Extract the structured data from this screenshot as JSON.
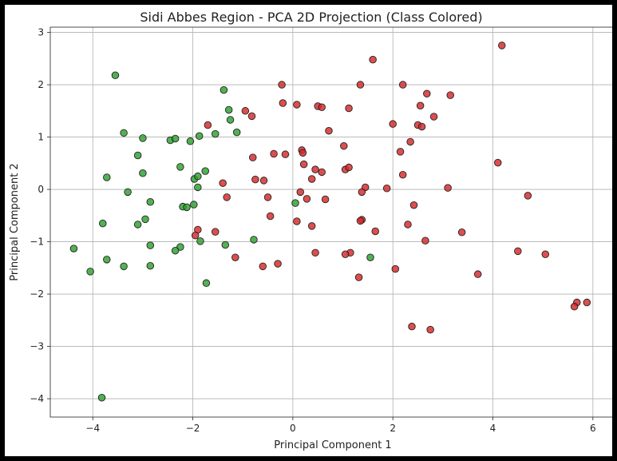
{
  "chart_data": {
    "type": "scatter",
    "title": "Sidi Abbes Region - PCA 2D Projection (Class Colored)",
    "xlabel": "Principal Component 1",
    "ylabel": "Principal Component 2",
    "xlim": [
      -4.85,
      6.45
    ],
    "ylim": [
      -4.35,
      3.1
    ],
    "xticks": [
      -4,
      -2,
      0,
      2,
      4,
      6
    ],
    "yticks": [
      -4,
      -3,
      -2,
      -1,
      0,
      1,
      2,
      3
    ],
    "xtick_labels": [
      "−4",
      "−2",
      "0",
      "2",
      "4",
      "6"
    ],
    "ytick_labels": [
      "−4",
      "−3",
      "−2",
      "−1",
      "0",
      "1",
      "2",
      "3"
    ],
    "grid": true,
    "colors": {
      "green": "#2ca02c",
      "red": "#d62728",
      "edge": "#222222"
    },
    "series": [
      {
        "color": "green",
        "points": [
          [
            -3.55,
            2.18
          ],
          [
            -1.38,
            1.9
          ],
          [
            -1.28,
            1.52
          ],
          [
            -1.25,
            1.33
          ],
          [
            -1.12,
            1.09
          ],
          [
            -1.55,
            1.06
          ],
          [
            -1.87,
            1.02
          ],
          [
            -3.38,
            1.08
          ],
          [
            -3.0,
            0.98
          ],
          [
            -2.45,
            0.94
          ],
          [
            -2.35,
            0.97
          ],
          [
            -2.05,
            0.92
          ],
          [
            -3.1,
            0.65
          ],
          [
            -2.25,
            0.43
          ],
          [
            -1.75,
            0.35
          ],
          [
            -3.72,
            0.23
          ],
          [
            -3.0,
            0.31
          ],
          [
            -1.97,
            0.2
          ],
          [
            -1.9,
            0.25
          ],
          [
            -1.9,
            0.04
          ],
          [
            -3.3,
            -0.05
          ],
          [
            -2.85,
            -0.24
          ],
          [
            -2.2,
            -0.33
          ],
          [
            -2.12,
            -0.34
          ],
          [
            -1.98,
            -0.29
          ],
          [
            -2.95,
            -0.57
          ],
          [
            -3.1,
            -0.67
          ],
          [
            -3.8,
            -0.65
          ],
          [
            -1.85,
            -0.99
          ],
          [
            -1.35,
            -1.06
          ],
          [
            -2.85,
            -1.07
          ],
          [
            -2.25,
            -1.1
          ],
          [
            -2.35,
            -1.17
          ],
          [
            -4.38,
            -1.13
          ],
          [
            -3.72,
            -1.34
          ],
          [
            -3.38,
            -1.47
          ],
          [
            -2.85,
            -1.46
          ],
          [
            -0.78,
            -0.96
          ],
          [
            -4.05,
            -1.57
          ],
          [
            -1.73,
            -1.79
          ],
          [
            0.05,
            -0.26
          ],
          [
            1.55,
            -1.3
          ],
          [
            -3.82,
            -3.98
          ]
        ]
      },
      {
        "color": "red",
        "points": [
          [
            4.18,
            2.75
          ],
          [
            1.6,
            2.48
          ],
          [
            -0.22,
            2.0
          ],
          [
            1.35,
            2.0
          ],
          [
            2.2,
            2.0
          ],
          [
            2.68,
            1.83
          ],
          [
            3.15,
            1.8
          ],
          [
            -0.2,
            1.65
          ],
          [
            0.08,
            1.62
          ],
          [
            0.5,
            1.59
          ],
          [
            0.58,
            1.57
          ],
          [
            1.12,
            1.55
          ],
          [
            2.55,
            1.6
          ],
          [
            -0.95,
            1.5
          ],
          [
            -0.82,
            1.4
          ],
          [
            2.82,
            1.39
          ],
          [
            -1.7,
            1.23
          ],
          [
            0.72,
            1.12
          ],
          [
            2.0,
            1.25
          ],
          [
            2.5,
            1.23
          ],
          [
            2.58,
            1.2
          ],
          [
            2.35,
            0.91
          ],
          [
            1.02,
            0.83
          ],
          [
            0.18,
            0.75
          ],
          [
            0.2,
            0.7
          ],
          [
            2.15,
            0.72
          ],
          [
            -0.38,
            0.68
          ],
          [
            -0.15,
            0.67
          ],
          [
            -0.8,
            0.61
          ],
          [
            4.1,
            0.51
          ],
          [
            0.22,
            0.48
          ],
          [
            0.45,
            0.38
          ],
          [
            1.05,
            0.38
          ],
          [
            1.12,
            0.42
          ],
          [
            0.58,
            0.33
          ],
          [
            2.2,
            0.28
          ],
          [
            -0.75,
            0.19
          ],
          [
            -0.58,
            0.17
          ],
          [
            0.38,
            0.2
          ],
          [
            -1.4,
            0.12
          ],
          [
            1.45,
            0.04
          ],
          [
            1.88,
            0.02
          ],
          [
            3.1,
            0.03
          ],
          [
            0.15,
            -0.05
          ],
          [
            1.38,
            -0.05
          ],
          [
            -1.32,
            -0.15
          ],
          [
            -0.5,
            -0.15
          ],
          [
            0.28,
            -0.18
          ],
          [
            0.65,
            -0.19
          ],
          [
            4.7,
            -0.12
          ],
          [
            2.42,
            -0.3
          ],
          [
            -0.45,
            -0.51
          ],
          [
            1.38,
            -0.58
          ],
          [
            1.35,
            -0.6
          ],
          [
            0.08,
            -0.61
          ],
          [
            2.3,
            -0.67
          ],
          [
            0.38,
            -0.7
          ],
          [
            -1.9,
            -0.77
          ],
          [
            1.65,
            -0.8
          ],
          [
            -1.55,
            -0.81
          ],
          [
            3.38,
            -0.82
          ],
          [
            -1.95,
            -0.88
          ],
          [
            2.65,
            -0.98
          ],
          [
            4.5,
            -1.18
          ],
          [
            0.45,
            -1.21
          ],
          [
            1.15,
            -1.21
          ],
          [
            1.05,
            -1.24
          ],
          [
            5.05,
            -1.24
          ],
          [
            -1.15,
            -1.3
          ],
          [
            -0.3,
            -1.42
          ],
          [
            -0.6,
            -1.47
          ],
          [
            2.05,
            -1.52
          ],
          [
            3.7,
            -1.62
          ],
          [
            1.32,
            -1.68
          ],
          [
            5.68,
            -2.16
          ],
          [
            5.88,
            -2.16
          ],
          [
            5.63,
            -2.24
          ],
          [
            2.38,
            -2.62
          ],
          [
            2.75,
            -2.68
          ]
        ]
      }
    ]
  }
}
